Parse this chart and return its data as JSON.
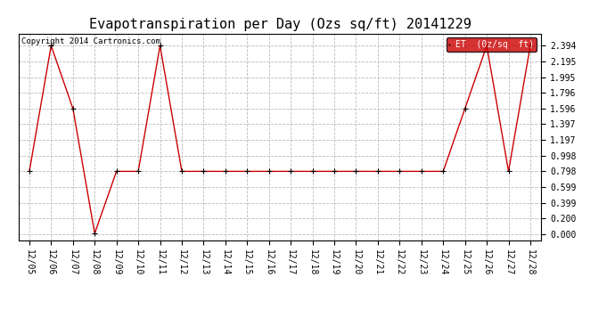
{
  "title": "Evapotranspiration per Day (Ozs sq/ft) 20141229",
  "copyright": "Copyright 2014 Cartronics.com",
  "legend_label": "ET  (0z/sq  ft)",
  "dates": [
    "12/05",
    "12/06",
    "12/07",
    "12/08",
    "12/09",
    "12/10",
    "12/11",
    "12/12",
    "12/13",
    "12/14",
    "12/15",
    "12/16",
    "12/17",
    "12/18",
    "12/19",
    "12/20",
    "12/21",
    "12/22",
    "12/23",
    "12/24",
    "12/25",
    "12/26",
    "12/27",
    "12/28"
  ],
  "values": [
    0.798,
    2.394,
    1.596,
    0.01,
    0.798,
    0.798,
    2.394,
    0.798,
    0.798,
    0.798,
    0.798,
    0.798,
    0.798,
    0.798,
    0.798,
    0.798,
    0.798,
    0.798,
    0.798,
    0.798,
    1.596,
    2.394,
    0.798,
    2.394
  ],
  "yticks": [
    0.0,
    0.2,
    0.399,
    0.599,
    0.798,
    0.998,
    1.197,
    1.397,
    1.596,
    1.796,
    1.995,
    2.195,
    2.394
  ],
  "ylim": [
    0.0,
    2.394
  ],
  "line_color": "#cc0000",
  "marker": "+",
  "marker_color": "#000000",
  "background_color": "#ffffff",
  "grid_color": "#bbbbbb",
  "title_fontsize": 11,
  "tick_fontsize": 7,
  "copyright_fontsize": 6.5
}
